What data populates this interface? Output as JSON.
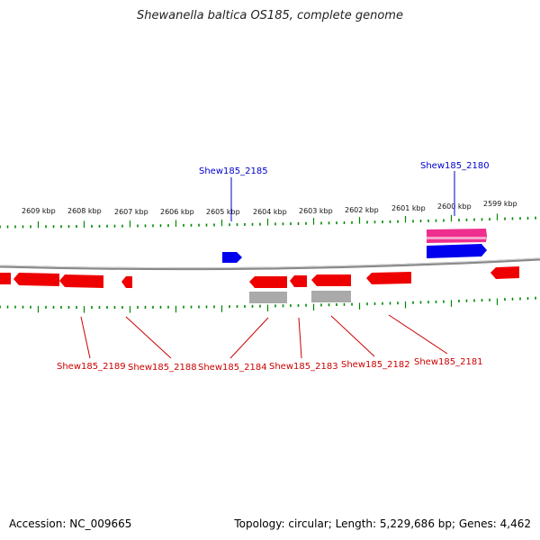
{
  "title": "Shewanella baltica OS185, complete genome",
  "footer": {
    "accession": "Accession: NC_009665",
    "summary": "Topology: circular; Length: 5,229,686 bp; Genes: 4,462"
  },
  "colors": {
    "forward_gene": "#0000ee",
    "forward_rna": "#ee2f8e",
    "reverse_gene": "#ee0000",
    "pseudo": "#aaaaaa",
    "tick": "#008800",
    "backbone": "#888888",
    "label_blue": "#0000cc",
    "label_red": "#cc0000"
  },
  "scale_labels": [
    "2609 kbp",
    "2608 kbp",
    "2607 kbp",
    "2606 kbp",
    "2605 kbp",
    "2604 kbp",
    "2603 kbp",
    "2602 kbp",
    "2601 kbp",
    "2600 kbp",
    "2599 kbp"
  ],
  "gene_labels_top": [
    "Shew185_2185",
    "Shew185_2180"
  ],
  "gene_labels_bottom": [
    "Shew185_2189",
    "Shew185_2188",
    "Shew185_2184",
    "Shew185_2183",
    "Shew185_2182",
    "Shew185_2181"
  ]
}
